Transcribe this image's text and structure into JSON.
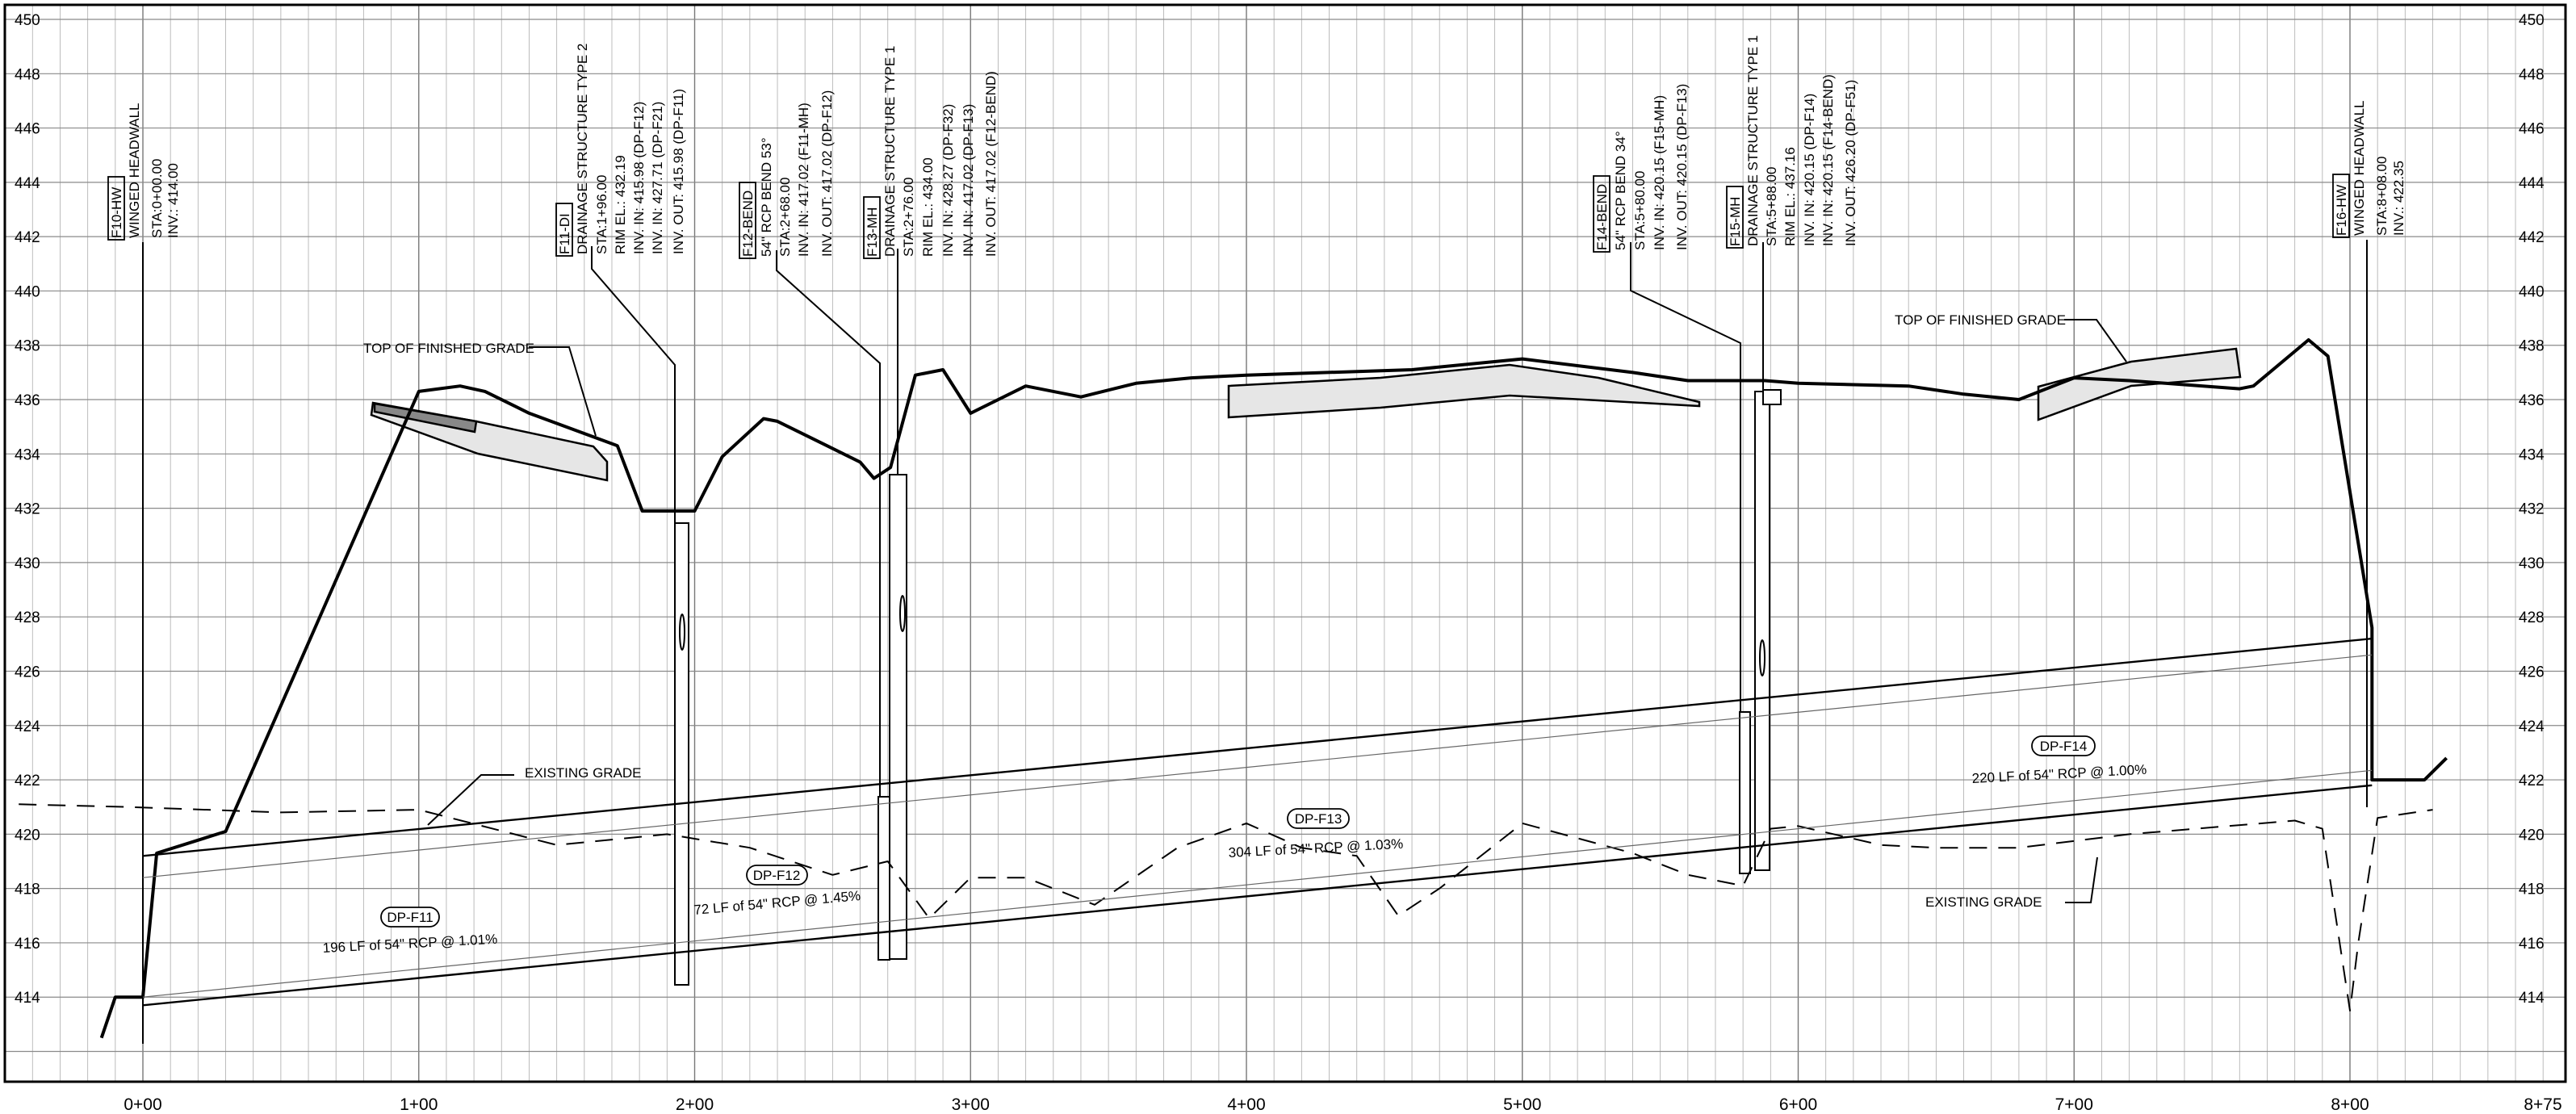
{
  "elev_axis": {
    "min": 412,
    "max": 450,
    "step": 2,
    "labels": [
      "450",
      "448",
      "446",
      "444",
      "442",
      "440",
      "438",
      "436",
      "434",
      "432",
      "430",
      "428",
      "426",
      "424",
      "422",
      "420",
      "418",
      "416",
      "414"
    ]
  },
  "station_axis": {
    "min": -50,
    "max": 875,
    "step": 10,
    "labels": [
      {
        "sta": 0,
        "text": "0+00"
      },
      {
        "sta": 100,
        "text": "1+00"
      },
      {
        "sta": 200,
        "text": "2+00"
      },
      {
        "sta": 300,
        "text": "3+00"
      },
      {
        "sta": 400,
        "text": "4+00"
      },
      {
        "sta": 500,
        "text": "5+00"
      },
      {
        "sta": 600,
        "text": "6+00"
      },
      {
        "sta": 700,
        "text": "7+00"
      },
      {
        "sta": 800,
        "text": "8+00"
      },
      {
        "sta": 875,
        "text": "8+75"
      }
    ]
  },
  "structures": [
    {
      "id": "F10-HW",
      "sta": 0,
      "top": 414.0,
      "bottom": 414.0,
      "lines": [
        "WINGED HEADWALL",
        "STA:0+00.00",
        "INV.: 414.00"
      ]
    },
    {
      "id": "F11-DI",
      "sta": 196,
      "top": 432.19,
      "bottom": 415.98,
      "lines": [
        "DRAINAGE STRUCTURE TYPE 2",
        "STA:1+96.00",
        "RIM EL.: 432.19",
        "INV. IN: 415.98 (DP-F12)",
        "INV. IN: 427.71 (DP-F21)",
        "INV. OUT: 415.98 (DP-F11)"
      ]
    },
    {
      "id": "F12-BEND",
      "sta": 268,
      "top": 421.8,
      "bottom": 417.02,
      "lines": [
        "54\" RCP BEND 53°",
        "STA:2+68.00",
        "INV. IN: 417.02 (F11-MH)",
        "INV. OUT: 417.02 (DP-F12)"
      ]
    },
    {
      "id": "F13-MH",
      "sta": 276,
      "top": 434.0,
      "bottom": 417.02,
      "lines": [
        "DRAINAGE STRUCTURE TYPE 1",
        "STA:2+76.00",
        "RIM EL.: 434.00",
        "INV. IN: 428.27 (DP-F32)",
        "INV. IN: 417.02 (DP-F13)",
        "INV. OUT: 417.02 (F12-BEND)"
      ]
    },
    {
      "id": "F14-BEND",
      "sta": 580,
      "top": 425.0,
      "bottom": 420.15,
      "lines": [
        "54\" RCP BEND 34°",
        "STA:5+80.00",
        "INV. IN: 420.15 (F15-MH)",
        "INV. OUT: 420.15 (DP-F13)"
      ]
    },
    {
      "id": "F15-MH",
      "sta": 588,
      "top": 437.16,
      "bottom": 420.15,
      "lines": [
        "DRAINAGE STRUCTURE TYPE 1",
        "STA:5+88.00",
        "RIM EL.: 437.16",
        "INV. IN: 420.15 (DP-F14)",
        "INV. IN: 420.15 (F14-BEND)",
        "INV. OUT: 426.20 (DP-F51)"
      ]
    },
    {
      "id": "F16-HW",
      "sta": 808,
      "top": 422.35,
      "bottom": 422.35,
      "lines": [
        "WINGED HEADWALL",
        "STA:8+08.00",
        "INV.: 422.35"
      ]
    }
  ],
  "pipe_runs": [
    {
      "id": "DP-F11",
      "desc": "196 LF of 54\" RCP @ 1.01%",
      "sta": [
        0,
        196
      ],
      "inv": [
        414.0,
        415.98
      ]
    },
    {
      "id": "DP-F12",
      "desc": "72 LF of 54\" RCP @ 1.45%",
      "sta": [
        196,
        276
      ],
      "inv": [
        415.98,
        417.02
      ]
    },
    {
      "id": "DP-F13",
      "desc": "304 LF of 54\" RCP @ 1.03%",
      "sta": [
        276,
        588
      ],
      "inv": [
        417.02,
        420.15
      ]
    },
    {
      "id": "DP-F14",
      "desc": "220 LF of 54\" RCP @ 1.00%",
      "sta": [
        588,
        808
      ],
      "inv": [
        420.15,
        422.35
      ]
    }
  ],
  "annotations": {
    "finished_grade_1": "TOP OF FINISHED GRADE",
    "finished_grade_2": "TOP OF FINISHED GRADE",
    "existing_grade_1": "EXISTING GRADE",
    "existing_grade_2": "EXISTING GRADE"
  },
  "chart_data": {
    "type": "line",
    "xlim": [
      -50,
      875
    ],
    "ylim": [
      412,
      450
    ],
    "grid": true,
    "series": [
      {
        "x": [
          -15,
          -10,
          0,
          5,
          30,
          100,
          115,
          124,
          140,
          172,
          181,
          200,
          210,
          225,
          230,
          260,
          265,
          271,
          280,
          290,
          300,
          320,
          340,
          360,
          380,
          400,
          460,
          500,
          540,
          560,
          588,
          600,
          640,
          660,
          680,
          700,
          720,
          760,
          765,
          785,
          792,
          808,
          808,
          827,
          835
        ],
        "y": [
          412.5,
          414,
          414,
          419.3,
          420.1,
          436.3,
          436.5,
          436.3,
          435.5,
          434.3,
          431.9,
          431.9,
          433.9,
          435.3,
          435.2,
          433.7,
          433.1,
          433.5,
          436.9,
          437.1,
          435.5,
          436.5,
          436.1,
          436.6,
          436.8,
          436.9,
          437.1,
          437.5,
          437.0,
          436.7,
          436.7,
          436.6,
          436.5,
          436.2,
          436.0,
          436.8,
          436.7,
          436.4,
          436.5,
          438.2,
          437.6,
          427.6,
          422,
          422,
          422.8
        ]
      },
      {
        "x": [
          -45,
          -5,
          50,
          100,
          150,
          190,
          220,
          250,
          270,
          285,
          300,
          320,
          345,
          375,
          400,
          420,
          440,
          455,
          470,
          500,
          540,
          560,
          580,
          590,
          600,
          630,
          650,
          680,
          720,
          780,
          790,
          800,
          803,
          810,
          830
        ],
        "y": [
          421.1,
          421.0,
          420.8,
          420.9,
          419.6,
          420.0,
          419.5,
          418.5,
          419.0,
          416.9,
          418.4,
          418.4,
          417.4,
          419.5,
          420.4,
          419.5,
          419.2,
          417.0,
          418.0,
          420.4,
          419.3,
          418.5,
          418.1,
          420.2,
          420.3,
          419.6,
          419.5,
          419.5,
          420.0,
          420.5,
          420.2,
          413.5,
          416.0,
          420.6,
          420.9
        ]
      },
      {
        "x": [
          0,
          808
        ],
        "y": [
          419.2,
          427.2
        ]
      },
      {
        "x": [
          0,
          808
        ],
        "y": [
          418.4,
          426.6
        ]
      },
      {
        "x": [
          0,
          808
        ],
        "y": [
          413.7,
          421.8
        ]
      },
      {
        "x": [
          0,
          808
        ],
        "y": [
          414.0,
          422.35
        ]
      }
    ]
  }
}
